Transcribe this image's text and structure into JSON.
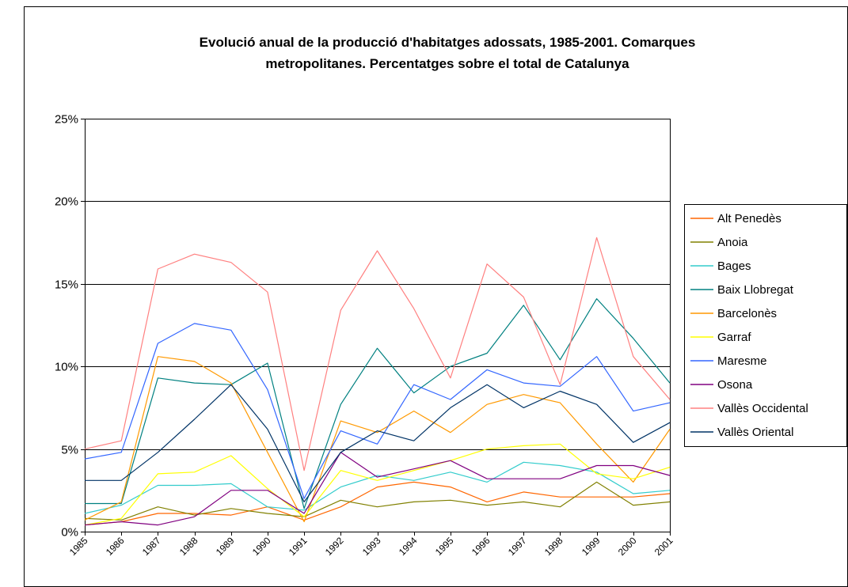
{
  "chart_data": {
    "type": "line",
    "title": "Evolució anual de la producció d'habitatges adossats, 1985-2001. Comarques metropolitanes. Percentatges sobre el total de Catalunya",
    "title_lines": [
      "Evolució anual de la producció d'habitatges adossats, 1985-2001. Comarques",
      "metropolitanes. Percentatges sobre el total de Catalunya"
    ],
    "xlabel": "",
    "ylabel": "",
    "categories": [
      "1985",
      "1986",
      "1987",
      "1988",
      "1989",
      "1990",
      "1991",
      "1992",
      "1993",
      "1994",
      "1995",
      "1996",
      "1997",
      "1998",
      "1999",
      "2000",
      "2001"
    ],
    "y_ticks": [
      "0%",
      "5%",
      "10%",
      "15%",
      "20%",
      "25%"
    ],
    "ylim": [
      0,
      25
    ],
    "grid": true,
    "legend_position": "right",
    "series": [
      {
        "name": "Alt Penedès",
        "color": "#ff6600",
        "values": [
          0.4,
          0.6,
          1.1,
          1.1,
          1.0,
          1.5,
          0.7,
          1.5,
          2.7,
          3.0,
          2.7,
          1.8,
          2.4,
          2.1,
          2.1,
          2.1,
          2.3
        ]
      },
      {
        "name": "Anoia",
        "color": "#808000",
        "values": [
          0.8,
          0.7,
          1.5,
          1.0,
          1.4,
          1.1,
          0.9,
          1.9,
          1.5,
          1.8,
          1.9,
          1.6,
          1.8,
          1.5,
          3.0,
          1.6,
          1.8
        ]
      },
      {
        "name": "Bages",
        "color": "#33cccc",
        "values": [
          1.1,
          1.6,
          2.8,
          2.8,
          2.9,
          1.5,
          1.3,
          2.7,
          3.4,
          3.1,
          3.6,
          3.0,
          4.2,
          4.0,
          3.6,
          2.3,
          2.5
        ]
      },
      {
        "name": "Baix Llobregat",
        "color": "#008080",
        "values": [
          1.7,
          1.7,
          9.3,
          9.0,
          8.9,
          10.2,
          1.4,
          7.7,
          11.1,
          8.4,
          10.0,
          10.8,
          13.7,
          10.4,
          14.1,
          11.7,
          9.0
        ]
      },
      {
        "name": "Barcelonès",
        "color": "#ff9900",
        "values": [
          0.7,
          1.8,
          10.6,
          10.3,
          9.0,
          4.8,
          0.6,
          6.7,
          6.0,
          7.3,
          6.0,
          7.7,
          8.3,
          7.8,
          5.3,
          3.0,
          6.2
        ]
      },
      {
        "name": "Garraf",
        "color": "#ffff00",
        "values": [
          0.4,
          0.8,
          3.5,
          3.6,
          4.6,
          2.6,
          0.9,
          3.7,
          3.1,
          3.7,
          4.3,
          5.0,
          5.2,
          5.3,
          3.5,
          3.2,
          3.9
        ]
      },
      {
        "name": "Maresme",
        "color": "#3366ff",
        "values": [
          4.4,
          4.8,
          11.4,
          12.6,
          12.2,
          8.6,
          2.0,
          6.1,
          5.3,
          8.9,
          8.0,
          9.8,
          9.0,
          8.8,
          10.6,
          7.3,
          7.8
        ]
      },
      {
        "name": "Osona",
        "color": "#800080",
        "values": [
          0.4,
          0.6,
          0.4,
          0.9,
          2.5,
          2.5,
          1.1,
          4.8,
          3.3,
          3.8,
          4.3,
          3.2,
          3.2,
          3.2,
          4.0,
          4.0,
          3.4
        ]
      },
      {
        "name": "Vallès Occidental",
        "color": "#ff8080",
        "values": [
          5.0,
          5.5,
          15.9,
          16.8,
          16.3,
          14.5,
          3.7,
          13.4,
          17.0,
          13.5,
          9.3,
          16.2,
          14.2,
          8.9,
          17.8,
          10.6,
          8.0
        ]
      },
      {
        "name": "Vallès Oriental",
        "color": "#003366",
        "values": [
          3.1,
          3.1,
          4.8,
          6.8,
          8.9,
          6.2,
          1.8,
          4.8,
          6.1,
          5.5,
          7.5,
          8.9,
          7.5,
          8.5,
          7.7,
          5.4,
          6.6
        ]
      }
    ]
  }
}
